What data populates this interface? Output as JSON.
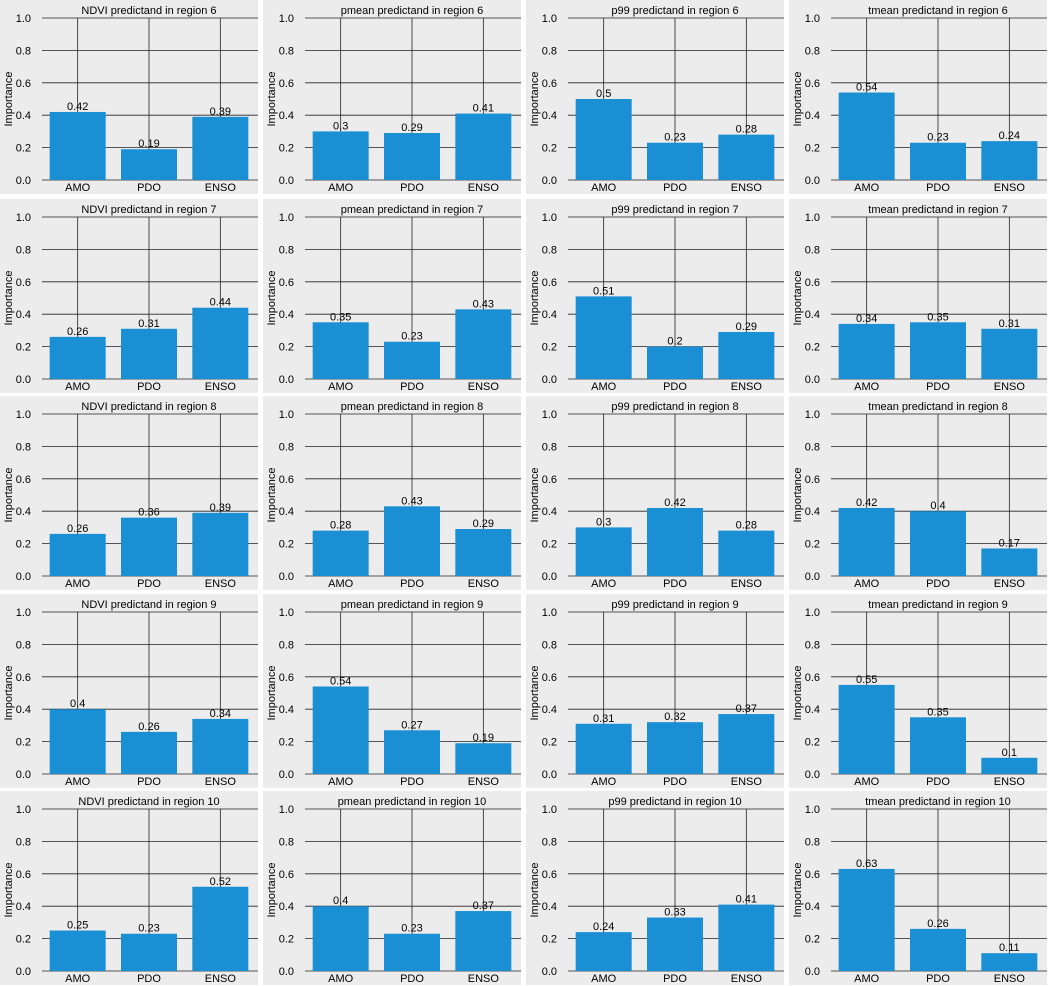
{
  "colors": {
    "bar": "#1a8fd4",
    "panel_bg": "#ececec",
    "gridline": "#222222"
  },
  "chart_data": [
    {
      "type": "bar",
      "title": "NDVI predictand in region 6",
      "ylabel": "Importance",
      "ylim": [
        0,
        1
      ],
      "yticks": [
        "0.0",
        "0.2",
        "0.4",
        "0.6",
        "0.8",
        "1.0"
      ],
      "grid": "on",
      "categories": [
        "AMO",
        "PDO",
        "ENSO"
      ],
      "values": [
        0.42,
        0.19,
        0.39
      ],
      "value_labels": [
        "0.42",
        "0.19",
        "0.39"
      ]
    },
    {
      "type": "bar",
      "title": "pmean predictand in region 6",
      "ylabel": "Importance",
      "ylim": [
        0,
        1
      ],
      "yticks": [
        "0.0",
        "0.2",
        "0.4",
        "0.6",
        "0.8",
        "1.0"
      ],
      "grid": "on",
      "categories": [
        "AMO",
        "PDO",
        "ENSO"
      ],
      "values": [
        0.3,
        0.29,
        0.41
      ],
      "value_labels": [
        "0.3",
        "0.29",
        "0.41"
      ]
    },
    {
      "type": "bar",
      "title": "p99 predictand in region 6",
      "ylabel": "Importance",
      "ylim": [
        0,
        1
      ],
      "yticks": [
        "0.0",
        "0.2",
        "0.4",
        "0.6",
        "0.8",
        "1.0"
      ],
      "grid": "on",
      "categories": [
        "AMO",
        "PDO",
        "ENSO"
      ],
      "values": [
        0.5,
        0.23,
        0.28
      ],
      "value_labels": [
        "0.5",
        "0.23",
        "0.28"
      ]
    },
    {
      "type": "bar",
      "title": "tmean predictand in region 6",
      "ylabel": "Importance",
      "ylim": [
        0,
        1
      ],
      "yticks": [
        "0.0",
        "0.2",
        "0.4",
        "0.6",
        "0.8",
        "1.0"
      ],
      "grid": "on",
      "categories": [
        "AMO",
        "PDO",
        "ENSO"
      ],
      "values": [
        0.54,
        0.23,
        0.24
      ],
      "value_labels": [
        "0.54",
        "0.23",
        "0.24"
      ]
    },
    {
      "type": "bar",
      "title": "NDVI predictand in region 7",
      "ylabel": "Importance",
      "ylim": [
        0,
        1
      ],
      "yticks": [
        "0.0",
        "0.2",
        "0.4",
        "0.6",
        "0.8",
        "1.0"
      ],
      "grid": "on",
      "categories": [
        "AMO",
        "PDO",
        "ENSO"
      ],
      "values": [
        0.26,
        0.31,
        0.44
      ],
      "value_labels": [
        "0.26",
        "0.31",
        "0.44"
      ]
    },
    {
      "type": "bar",
      "title": "pmean predictand in region 7",
      "ylabel": "Importance",
      "ylim": [
        0,
        1
      ],
      "yticks": [
        "0.0",
        "0.2",
        "0.4",
        "0.6",
        "0.8",
        "1.0"
      ],
      "grid": "on",
      "categories": [
        "AMO",
        "PDO",
        "ENSO"
      ],
      "values": [
        0.35,
        0.23,
        0.43
      ],
      "value_labels": [
        "0.35",
        "0.23",
        "0.43"
      ]
    },
    {
      "type": "bar",
      "title": "p99 predictand in region 7",
      "ylabel": "Importance",
      "ylim": [
        0,
        1
      ],
      "yticks": [
        "0.0",
        "0.2",
        "0.4",
        "0.6",
        "0.8",
        "1.0"
      ],
      "grid": "on",
      "categories": [
        "AMO",
        "PDO",
        "ENSO"
      ],
      "values": [
        0.51,
        0.2,
        0.29
      ],
      "value_labels": [
        "0.51",
        "0.2",
        "0.29"
      ]
    },
    {
      "type": "bar",
      "title": "tmean  predictand in region 7",
      "ylabel": "Importance",
      "ylim": [
        0,
        1
      ],
      "yticks": [
        "0.0",
        "0.2",
        "0.4",
        "0.6",
        "0.8",
        "1.0"
      ],
      "grid": "on",
      "categories": [
        "AMO",
        "PDO",
        "ENSO"
      ],
      "values": [
        0.34,
        0.35,
        0.31
      ],
      "value_labels": [
        "0.34",
        "0.35",
        "0.31"
      ]
    },
    {
      "type": "bar",
      "title": "NDVI predictand in region 8",
      "ylabel": "Importance",
      "ylim": [
        0,
        1
      ],
      "yticks": [
        "0.0",
        "0.2",
        "0.4",
        "0.6",
        "0.8",
        "1.0"
      ],
      "grid": "on",
      "categories": [
        "AMO",
        "PDO",
        "ENSO"
      ],
      "values": [
        0.26,
        0.36,
        0.39
      ],
      "value_labels": [
        "0.26",
        "0.36",
        "0.39"
      ]
    },
    {
      "type": "bar",
      "title": "pmean predictand in region 8",
      "ylabel": "Importance",
      "ylim": [
        0,
        1
      ],
      "yticks": [
        "0.0",
        "0.2",
        "0.4",
        "0.6",
        "0.8",
        "1.0"
      ],
      "grid": "on",
      "categories": [
        "AMO",
        "PDO",
        "ENSO"
      ],
      "values": [
        0.28,
        0.43,
        0.29
      ],
      "value_labels": [
        "0.28",
        "0.43",
        "0.29"
      ]
    },
    {
      "type": "bar",
      "title": "p99 predictand in region 8",
      "ylabel": "Importance",
      "ylim": [
        0,
        1
      ],
      "yticks": [
        "0.0",
        "0.2",
        "0.4",
        "0.6",
        "0.8",
        "1.0"
      ],
      "grid": "on",
      "categories": [
        "AMO",
        "PDO",
        "ENSO"
      ],
      "values": [
        0.3,
        0.42,
        0.28
      ],
      "value_labels": [
        "0.3",
        "0.42",
        "0.28"
      ]
    },
    {
      "type": "bar",
      "title": "tmean  predictand in region 8",
      "ylabel": "Importance",
      "ylim": [
        0,
        1
      ],
      "yticks": [
        "0.0",
        "0.2",
        "0.4",
        "0.6",
        "0.8",
        "1.0"
      ],
      "grid": "on",
      "categories": [
        "AMO",
        "PDO",
        "ENSO"
      ],
      "values": [
        0.42,
        0.4,
        0.17
      ],
      "value_labels": [
        "0.42",
        "0.4",
        "0.17"
      ]
    },
    {
      "type": "bar",
      "title": "NDVI predictand in region 9",
      "ylabel": "Importance",
      "ylim": [
        0,
        1
      ],
      "yticks": [
        "0.0",
        "0.2",
        "0.4",
        "0.6",
        "0.8",
        "1.0"
      ],
      "grid": "on",
      "categories": [
        "AMO",
        "PDO",
        "ENSO"
      ],
      "values": [
        0.4,
        0.26,
        0.34
      ],
      "value_labels": [
        "0.4",
        "0.26",
        "0.34"
      ]
    },
    {
      "type": "bar",
      "title": "pmean predictand in region 9",
      "ylabel": "Importance",
      "ylim": [
        0,
        1
      ],
      "yticks": [
        "0.0",
        "0.2",
        "0.4",
        "0.6",
        "0.8",
        "1.0"
      ],
      "grid": "on",
      "categories": [
        "AMO",
        "PDO",
        "ENSO"
      ],
      "values": [
        0.54,
        0.27,
        0.19
      ],
      "value_labels": [
        "0.54",
        "0.27",
        "0.19"
      ]
    },
    {
      "type": "bar",
      "title": "p99 predictand in region 9",
      "ylabel": "Importance",
      "ylim": [
        0,
        1
      ],
      "yticks": [
        "0.0",
        "0.2",
        "0.4",
        "0.6",
        "0.8",
        "1.0"
      ],
      "grid": "on",
      "categories": [
        "AMO",
        "PDO",
        "ENSO"
      ],
      "values": [
        0.31,
        0.32,
        0.37
      ],
      "value_labels": [
        "0.31",
        "0.32",
        "0.37"
      ]
    },
    {
      "type": "bar",
      "title": "tmean  predictand in region 9",
      "ylabel": "Importance",
      "ylim": [
        0,
        1
      ],
      "yticks": [
        "0.0",
        "0.2",
        "0.4",
        "0.6",
        "0.8",
        "1.0"
      ],
      "grid": "on",
      "categories": [
        "AMO",
        "PDO",
        "ENSO"
      ],
      "values": [
        0.55,
        0.35,
        0.1
      ],
      "value_labels": [
        "0.55",
        "0.35",
        "0.1"
      ]
    },
    {
      "type": "bar",
      "title": "NDVI predictand in region 10",
      "ylabel": "Importance",
      "ylim": [
        0,
        1
      ],
      "yticks": [
        "0.0",
        "0.2",
        "0.4",
        "0.6",
        "0.8",
        "1.0"
      ],
      "grid": "on",
      "categories": [
        "AMO",
        "PDO",
        "ENSO"
      ],
      "values": [
        0.25,
        0.23,
        0.52
      ],
      "value_labels": [
        "0.25",
        "0.23",
        "0.52"
      ]
    },
    {
      "type": "bar",
      "title": "pmean predictand in region 10",
      "ylabel": "Importance",
      "ylim": [
        0,
        1
      ],
      "yticks": [
        "0.0",
        "0.2",
        "0.4",
        "0.6",
        "0.8",
        "1.0"
      ],
      "grid": "on",
      "categories": [
        "AMO",
        "PDO",
        "ENSO"
      ],
      "values": [
        0.4,
        0.23,
        0.37
      ],
      "value_labels": [
        "0.4",
        "0.23",
        "0.37"
      ]
    },
    {
      "type": "bar",
      "title": "p99 predictand in region 10",
      "ylabel": "Importance",
      "ylim": [
        0,
        1
      ],
      "yticks": [
        "0.0",
        "0.2",
        "0.4",
        "0.6",
        "0.8",
        "1.0"
      ],
      "grid": "on",
      "categories": [
        "AMO",
        "PDO",
        "ENSO"
      ],
      "values": [
        0.24,
        0.33,
        0.41
      ],
      "value_labels": [
        "0.24",
        "0.33",
        "0.41"
      ]
    },
    {
      "type": "bar",
      "title": "tmean  predictand in region 10",
      "ylabel": "Importance",
      "ylim": [
        0,
        1
      ],
      "yticks": [
        "0.0",
        "0.2",
        "0.4",
        "0.6",
        "0.8",
        "1.0"
      ],
      "grid": "on",
      "categories": [
        "AMO",
        "PDO",
        "ENSO"
      ],
      "values": [
        0.63,
        0.26,
        0.11
      ],
      "value_labels": [
        "0.63",
        "0.26",
        "0.11"
      ]
    }
  ]
}
